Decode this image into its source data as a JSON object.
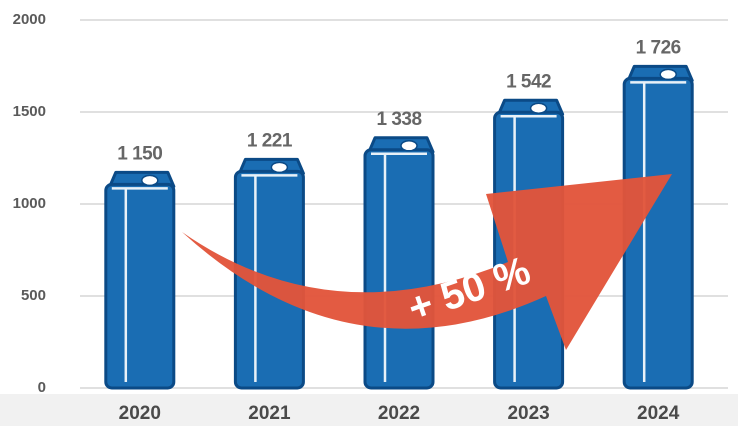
{
  "chart_data": {
    "type": "bar",
    "categories": [
      "2020",
      "2021",
      "2022",
      "2023",
      "2024"
    ],
    "values": [
      1150,
      1221,
      1338,
      1542,
      1726
    ],
    "value_labels": [
      "1 150",
      "1 221",
      "1 338",
      "1 542",
      "1 726"
    ],
    "color": "#1a6db3",
    "ylim": [
      0,
      2000
    ],
    "yticks": [
      0,
      500,
      1000,
      1500,
      2000
    ],
    "grid": true,
    "annotation": "+ 50 %"
  }
}
